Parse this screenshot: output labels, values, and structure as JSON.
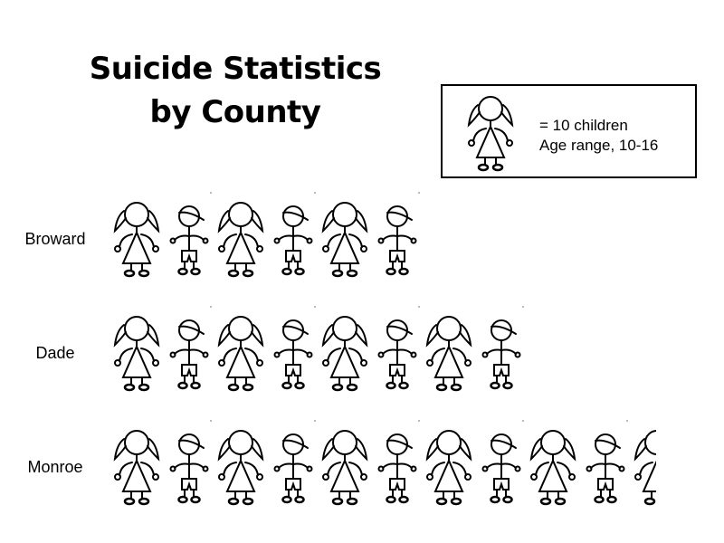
{
  "chart_data": {
    "type": "pictograph",
    "title_lines": [
      "Suicide Statistics",
      "by County"
    ],
    "legend": {
      "symbol": "stick-figure-child-icon",
      "lines": [
        "= 10 children",
        "Age range, 10-16"
      ]
    },
    "unit_value": 10,
    "categories": [
      "Broward",
      "Dade",
      "Monroe"
    ],
    "values": [
      60,
      80,
      105
    ]
  }
}
